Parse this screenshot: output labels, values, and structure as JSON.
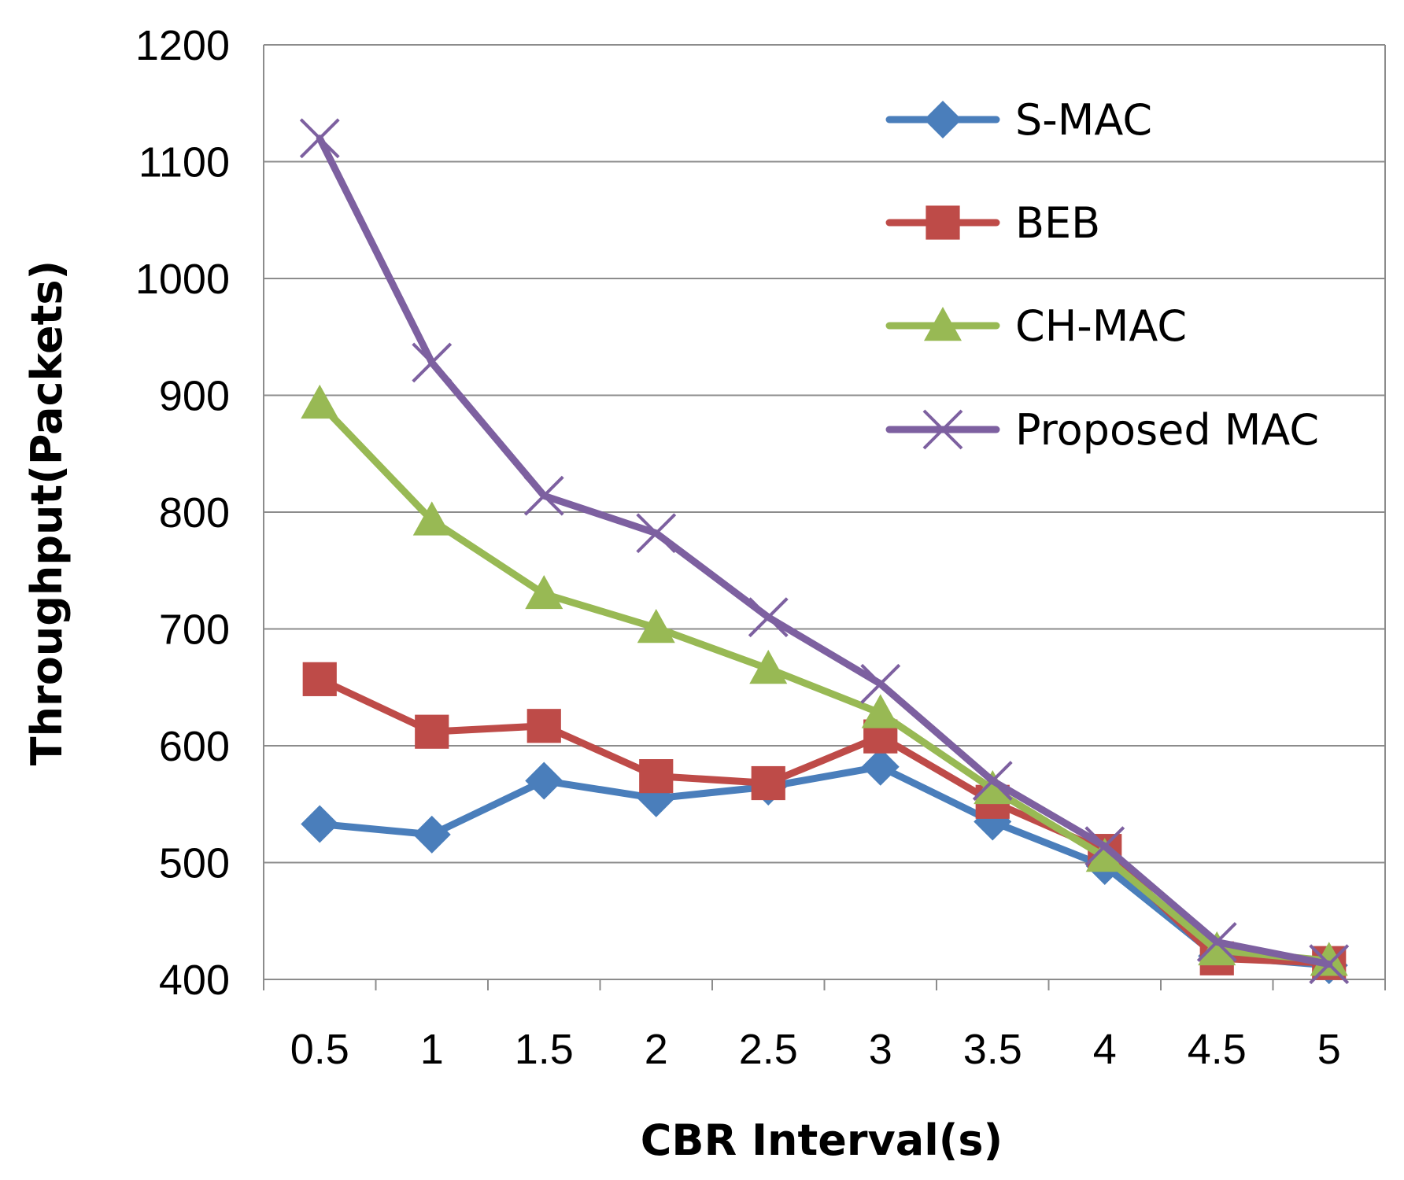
{
  "chart_data": {
    "type": "line",
    "title": "",
    "xlabel": "CBR Interval(s)",
    "ylabel": "Throughput(Packets)",
    "categories": [
      "0.5",
      "1",
      "1.5",
      "2",
      "2.5",
      "3",
      "3.5",
      "4",
      "4.5",
      "5"
    ],
    "ylim": [
      400,
      1200
    ],
    "yticks": [
      400,
      500,
      600,
      700,
      800,
      900,
      1000,
      1100,
      1200
    ],
    "grid": true,
    "legend_position": "top-right",
    "series": [
      {
        "name": "S-MAC",
        "color": "#4a7ebb",
        "marker": "diamond",
        "values": [
          533,
          524,
          570,
          555,
          565,
          582,
          535,
          497,
          420,
          412
        ]
      },
      {
        "name": "BEB",
        "color": "#be4b48",
        "marker": "square",
        "values": [
          657,
          612,
          617,
          574,
          568,
          608,
          552,
          510,
          418,
          414
        ]
      },
      {
        "name": "CH-MAC",
        "color": "#98b954",
        "marker": "triangle",
        "values": [
          893,
          793,
          730,
          701,
          666,
          628,
          563,
          505,
          425,
          416
        ]
      },
      {
        "name": "Proposed MAC",
        "color": "#7d60a0",
        "marker": "x",
        "values": [
          1120,
          928,
          814,
          782,
          710,
          653,
          570,
          514,
          432,
          413
        ]
      }
    ]
  }
}
